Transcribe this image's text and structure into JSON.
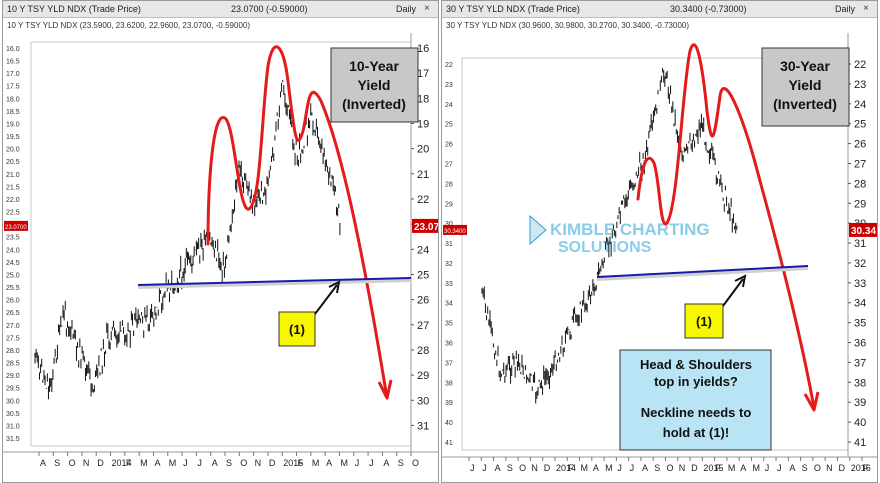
{
  "left": {
    "title_name": "10 Y TSY YLD NDX (Trade Price)",
    "title_price": "23.0700 (-0.59000)",
    "title_freq": "Daily",
    "subtitle": "10 Y TSY YLD NDX (23.5900, 23.6200, 22.9600, 23.0700, -0.59000)",
    "note_line1": "10-Year",
    "note_line2": "Yield",
    "note_line3": "(Inverted)",
    "marker_label": "(1)",
    "last_price_left": "23.0700",
    "last_price_right": "23.07"
  },
  "right": {
    "title_name": "30 Y TSY YLD NDX (Trade Price)",
    "title_price": "30.3400 (-0.73000)",
    "title_freq": "Daily",
    "subtitle": "30 Y TSY YLD NDX (30.9600, 30.9800, 30.2700, 30.3400, -0.73000)",
    "note_line1": "30-Year",
    "note_line2": "Yield",
    "note_line3": "(Inverted)",
    "marker_label": "(1)",
    "last_price_left": "30.3400",
    "last_price_right": "30.34",
    "callout_line1": "Head & Shoulders",
    "callout_line2": "top in yields?",
    "callout_line3": "Neckline needs to",
    "callout_line4": "hold at (1)!",
    "watermark_top": "KIMBLE CHARTING",
    "watermark_bottom": "SOLUTIONS"
  },
  "close_glyph": "×",
  "colors": {
    "price": "#111111",
    "annotation": "#e31b1b",
    "neckline": "#1a1aa8",
    "note_box": "#c8c8c8",
    "marker_box": "#f7f700",
    "callout_box": "#b8e4f5",
    "last_price_tag": "#cc0000",
    "watermark": "#29a3d6"
  },
  "chart_data": [
    {
      "type": "line",
      "title": "10 Y TSY YLD NDX (Trade Price)",
      "y_axis_inverted": true,
      "ylim": [
        31.5,
        16.0
      ],
      "left_axis_ticks": [
        "16.0",
        "16.5",
        "17.0",
        "17.5",
        "18.0",
        "18.5",
        "19.0",
        "19.5",
        "20.0",
        "20.5",
        "21.0",
        "21.5",
        "22.0",
        "22.5",
        "23.0",
        "23.5",
        "24.0",
        "24.5",
        "25.0",
        "25.5",
        "26.0",
        "26.5",
        "27.0",
        "27.5",
        "28.0",
        "28.5",
        "29.0",
        "29.5",
        "30.0",
        "30.5",
        "31.0",
        "31.5"
      ],
      "right_axis_ticks": [
        "16",
        "17",
        "18",
        "19",
        "20",
        "21",
        "22",
        "23",
        "24",
        "25",
        "26",
        "27",
        "28",
        "29",
        "30",
        "31"
      ],
      "x_labels": [
        "A",
        "S",
        "O",
        "N",
        "D",
        "2014",
        "F",
        "M",
        "A",
        "M",
        "J",
        "J",
        "A",
        "S",
        "O",
        "N",
        "D",
        "2015",
        "F",
        "M",
        "A",
        "M",
        "J",
        "J",
        "A",
        "S",
        "O"
      ],
      "series": [
        {
          "x": [
            "Aug 2013",
            "Sep 2013",
            "Oct 2013",
            "Nov 2013",
            "Dec 2013",
            "Jan 2014",
            "Feb 2014",
            "Mar 2014",
            "Apr 2014",
            "May 2014",
            "Jun 2014",
            "Jul 2014",
            "Aug 2014",
            "Sep 2014",
            "Oct 2014",
            "Nov 2014",
            "Dec 2014",
            "Jan 2015",
            "Feb 2015",
            "Mar 2015",
            "Apr 2015",
            "May 2015"
          ],
          "values": [
            28.3,
            29.5,
            26.5,
            28.0,
            29.5,
            27.5,
            27.3,
            27.0,
            26.8,
            25.5,
            25.0,
            24.2,
            23.6,
            24.8,
            20.8,
            22.2,
            21.5,
            17.5,
            20.4,
            18.6,
            20.5,
            23.07
          ]
        }
      ],
      "last_price": 23.07
    },
    {
      "type": "line",
      "title": "30 Y TSY YLD NDX (Trade Price)",
      "y_axis_inverted": true,
      "ylim": [
        41,
        22
      ],
      "left_axis_ticks": [
        "22",
        "23",
        "24",
        "25",
        "26",
        "27",
        "28",
        "29",
        "30",
        "31",
        "32",
        "33",
        "34",
        "35",
        "36",
        "37",
        "38",
        "39",
        "40",
        "41"
      ],
      "right_axis_ticks": [
        "22",
        "23",
        "24",
        "25",
        "26",
        "27",
        "28",
        "29",
        "30",
        "31",
        "32",
        "33",
        "34",
        "35",
        "36",
        "37",
        "38",
        "39",
        "40",
        "41"
      ],
      "x_labels": [
        "J",
        "J",
        "A",
        "S",
        "O",
        "N",
        "D",
        "2014",
        "F",
        "M",
        "A",
        "M",
        "J",
        "J",
        "A",
        "S",
        "O",
        "N",
        "D",
        "2015",
        "F",
        "M",
        "A",
        "M",
        "J",
        "J",
        "A",
        "S",
        "O",
        "N",
        "D",
        "2016",
        "F"
      ],
      "series": [
        {
          "x": [
            "Jun 2013",
            "Aug 2013",
            "Oct 2013",
            "Dec 2013",
            "Feb 2014",
            "Apr 2014",
            "Jun 2014",
            "Aug 2014",
            "Oct 2014",
            "Dec 2014",
            "Jan 2015",
            "Feb 2015",
            "Mar 2015",
            "Apr 2015",
            "May 2015"
          ],
          "values": [
            33.5,
            37.5,
            37.0,
            38.5,
            37.0,
            35.0,
            33.5,
            31.0,
            28.5,
            26.5,
            22.3,
            26.8,
            25.0,
            28.0,
            30.34
          ]
        }
      ],
      "last_price": 30.34
    }
  ]
}
